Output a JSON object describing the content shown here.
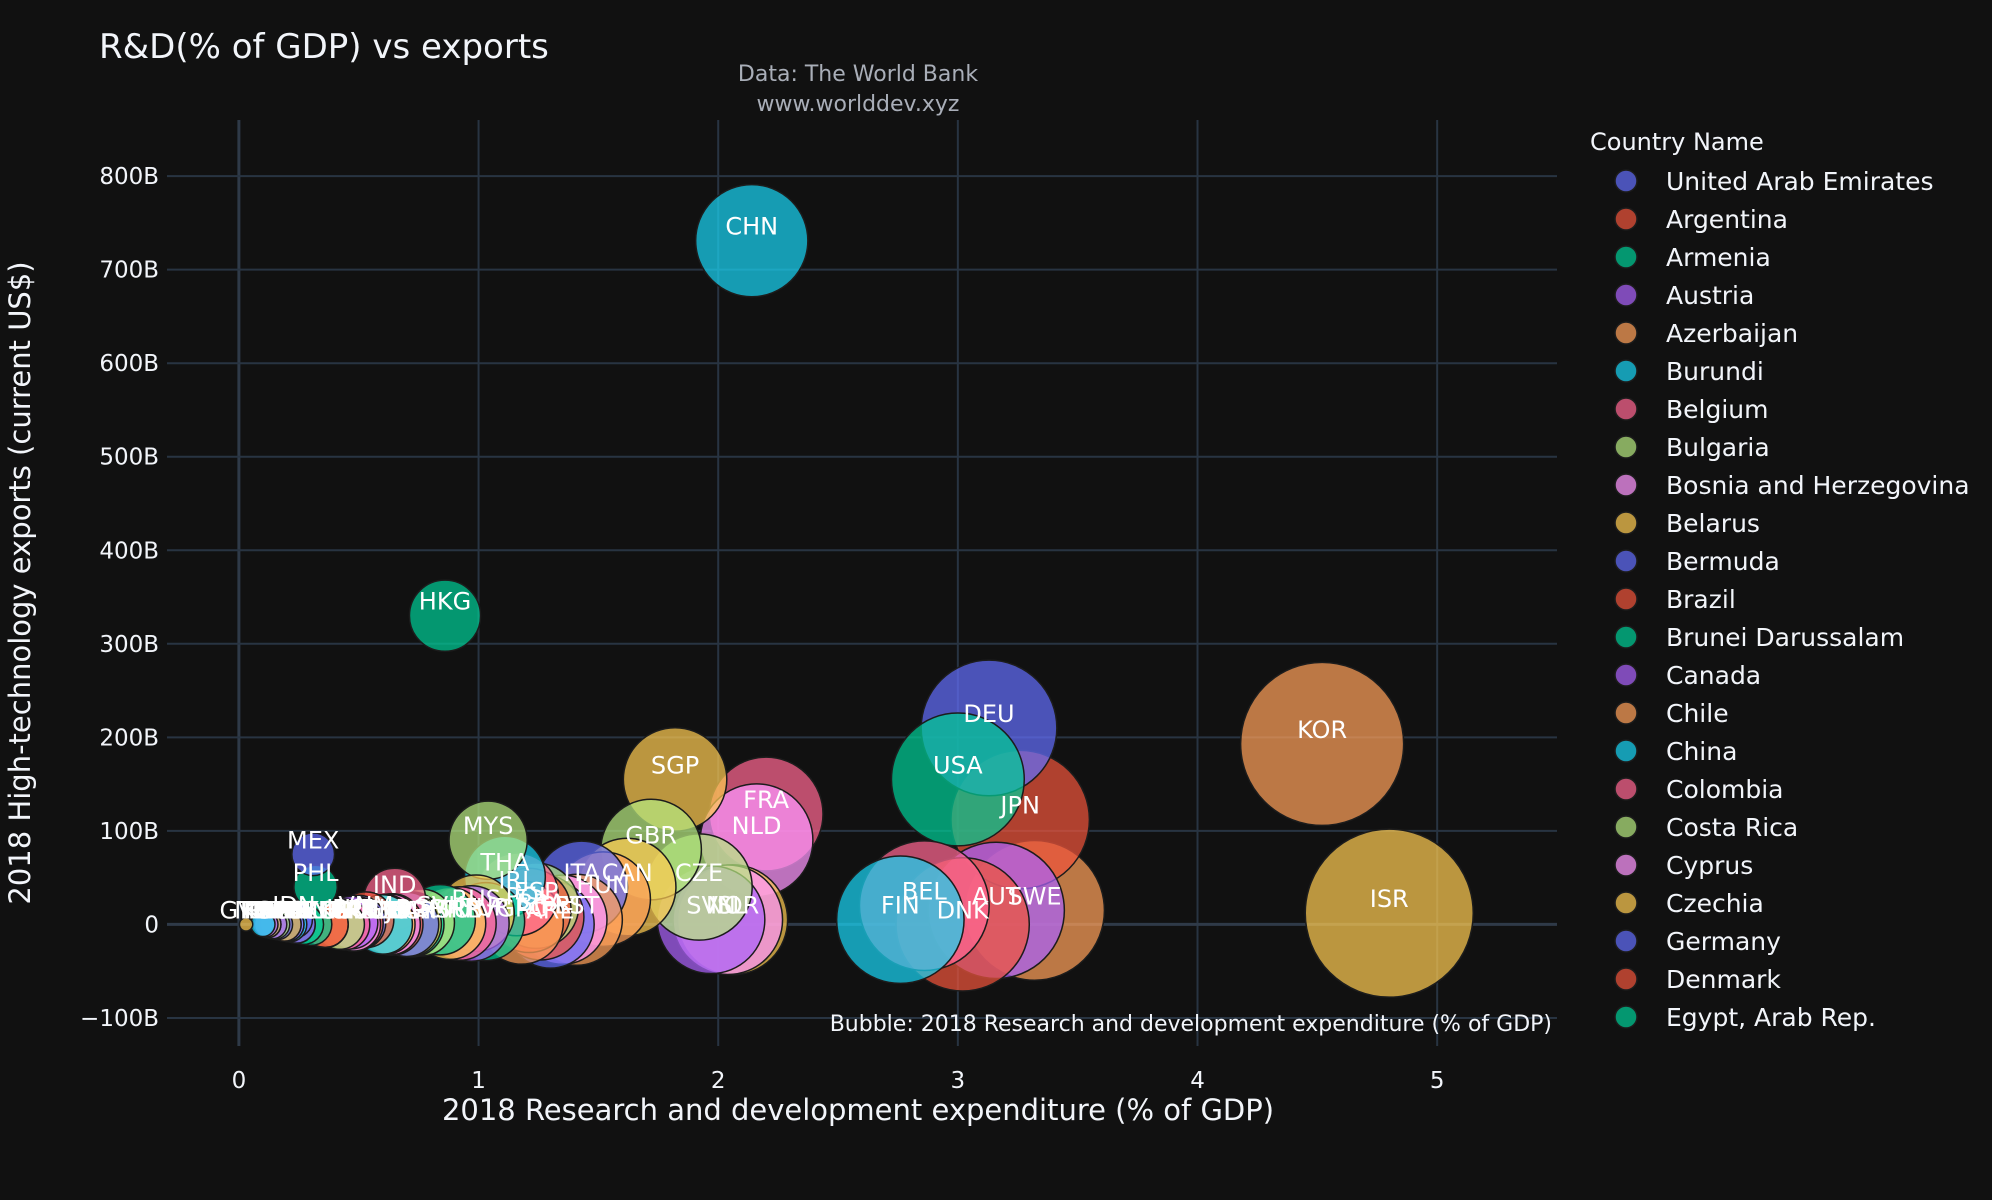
{
  "chart_data": {
    "type": "scatter",
    "title": "R&D(% of GDP) vs exports",
    "subtitle_lines": [
      "Data: The World Bank",
      "www.worlddev.xyz"
    ],
    "xlabel": "2018 Research and development expenditure (% of GDP)",
    "ylabel": "2018 High-technology exports (current US$)",
    "size_note": "Bubble: 2018 Research and development expenditure (% of GDP)",
    "xlim": [
      -0.3,
      5.5
    ],
    "ylim": [
      -130,
      860
    ],
    "x_ticks": [
      0,
      1,
      2,
      3,
      4,
      5
    ],
    "y_ticks": [
      -100,
      0,
      100,
      200,
      300,
      400,
      500,
      600,
      700,
      800
    ],
    "y_tick_labels": [
      "−100B",
      "0",
      "100B",
      "200B",
      "300B",
      "400B",
      "500B",
      "600B",
      "700B",
      "800B"
    ],
    "grid": true,
    "legend_title": "Country Name",
    "legend_position": "right",
    "legend": [
      {
        "name": "United Arab Emirates",
        "color": "#636efa"
      },
      {
        "name": "Argentina",
        "color": "#ef553b"
      },
      {
        "name": "Armenia",
        "color": "#00cc96"
      },
      {
        "name": "Austria",
        "color": "#ab63fa"
      },
      {
        "name": "Azerbaijan",
        "color": "#ffa15a"
      },
      {
        "name": "Burundi",
        "color": "#19d3f3"
      },
      {
        "name": "Belgium",
        "color": "#ff6692"
      },
      {
        "name": "Bulgaria",
        "color": "#b6e880"
      },
      {
        "name": "Bosnia and Herzegovina",
        "color": "#ff97ff"
      },
      {
        "name": "Belarus",
        "color": "#fecb52"
      },
      {
        "name": "Bermuda",
        "color": "#636efa"
      },
      {
        "name": "Brazil",
        "color": "#ef553b"
      },
      {
        "name": "Brunei Darussalam",
        "color": "#00cc96"
      },
      {
        "name": "Canada",
        "color": "#ab63fa"
      },
      {
        "name": "Chile",
        "color": "#ffa15a"
      },
      {
        "name": "China",
        "color": "#19d3f3"
      },
      {
        "name": "Colombia",
        "color": "#ff6692"
      },
      {
        "name": "Costa Rica",
        "color": "#b6e880"
      },
      {
        "name": "Cyprus",
        "color": "#ff97ff"
      },
      {
        "name": "Czechia",
        "color": "#fecb52"
      },
      {
        "name": "Germany",
        "color": "#636efa"
      },
      {
        "name": "Denmark",
        "color": "#ef553b"
      },
      {
        "name": "Egypt, Arab Rep.",
        "color": "#00cc96"
      }
    ],
    "points": [
      {
        "label": "CHN",
        "x": 2.14,
        "y": 731,
        "color": "#19d3f3"
      },
      {
        "label": "HKG",
        "x": 0.86,
        "y": 330,
        "color": "#00cc96"
      },
      {
        "label": "KOR",
        "x": 4.52,
        "y": 193,
        "color": "#ffa15a"
      },
      {
        "label": "ISR",
        "x": 4.8,
        "y": 12,
        "color": "#fecb52"
      },
      {
        "label": "DEU",
        "x": 3.13,
        "y": 210,
        "color": "#636efa"
      },
      {
        "label": "USA",
        "x": 3.0,
        "y": 155,
        "color": "#00cc96"
      },
      {
        "label": "JPN",
        "x": 3.26,
        "y": 112,
        "color": "#ef553b"
      },
      {
        "label": "SWE",
        "x": 3.32,
        "y": 15,
        "color": "#ffa15a"
      },
      {
        "label": "AUT",
        "x": 3.16,
        "y": 15,
        "color": "#ab63fa"
      },
      {
        "label": "DNK",
        "x": 3.02,
        "y": 0,
        "color": "#ef553b"
      },
      {
        "label": "BEL",
        "x": 2.86,
        "y": 20,
        "color": "#ff6692"
      },
      {
        "label": "FIN",
        "x": 2.76,
        "y": 5,
        "color": "#19d3f3"
      },
      {
        "label": "SGP",
        "x": 1.82,
        "y": 155,
        "color": "#fecb52"
      },
      {
        "label": "FRA",
        "x": 2.2,
        "y": 118,
        "color": "#ff6692"
      },
      {
        "label": "NLD",
        "x": 2.16,
        "y": 90,
        "color": "#ff97ff"
      },
      {
        "label": "GBR",
        "x": 1.72,
        "y": 80,
        "color": "#b6e880"
      },
      {
        "label": "CZE",
        "x": 1.92,
        "y": 40,
        "color": "#b6e880"
      },
      {
        "label": "NOR",
        "x": 2.06,
        "y": 5,
        "color": "#fecb52"
      },
      {
        "label": "SVN",
        "x": 1.97,
        "y": 5,
        "color": "#ab63fa"
      },
      {
        "label": "ISL",
        "x": 2.04,
        "y": 5,
        "color": "#ff97ff"
      },
      {
        "label": "CAN",
        "x": 1.62,
        "y": 40,
        "color": "#fecb52"
      },
      {
        "label": "HUN",
        "x": 1.52,
        "y": 27,
        "color": "#ffa15a"
      },
      {
        "label": "ITA",
        "x": 1.43,
        "y": 40,
        "color": "#636efa"
      },
      {
        "label": "EST",
        "x": 1.41,
        "y": 5,
        "color": "#ffa15a"
      },
      {
        "label": "MYS",
        "x": 1.04,
        "y": 90,
        "color": "#b6e880"
      },
      {
        "label": "THA",
        "x": 1.11,
        "y": 51,
        "color": "#19d3f3"
      },
      {
        "label": "IRL",
        "x": 1.16,
        "y": 32,
        "color": "#ff6692"
      },
      {
        "label": "ESP",
        "x": 1.24,
        "y": 20,
        "color": "#b6e880"
      },
      {
        "label": "RUS",
        "x": 0.99,
        "y": 12,
        "color": "#fecb52"
      },
      {
        "label": "MEX",
        "x": 0.31,
        "y": 75,
        "color": "#636efa"
      },
      {
        "label": "PHL",
        "x": 0.32,
        "y": 40,
        "color": "#00cc96"
      },
      {
        "label": "IND",
        "x": 0.65,
        "y": 27,
        "color": "#ff6692"
      },
      {
        "label": "IDN",
        "x": 0.23,
        "y": 5,
        "color": "#636efa"
      },
      {
        "label": "SVK",
        "x": 0.84,
        "y": 5,
        "color": "#00cc96"
      },
      {
        "label": "VNM",
        "x": 0.53,
        "y": 5,
        "color": "#ef553b"
      },
      {
        "label": "POL",
        "x": 1.21,
        "y": 15,
        "color": "#ef553b"
      },
      {
        "label": "PRT",
        "x": 1.35,
        "y": 5,
        "color": "#ff97ff"
      },
      {
        "label": "UKR",
        "x": 0.47,
        "y": 2,
        "color": "#ab63fa"
      },
      {
        "label": "ROU",
        "x": 0.5,
        "y": 2,
        "color": "#636efa"
      },
      {
        "label": "TUR",
        "x": 1.03,
        "y": 3,
        "color": "#00cc96"
      },
      {
        "label": "BRA",
        "x": 1.26,
        "y": 8,
        "color": "#ef553b"
      },
      {
        "label": "GRC",
        "x": 1.18,
        "y": 2,
        "color": "#ffa15a"
      },
      {
        "label": "BGR",
        "x": 0.76,
        "y": 2,
        "color": "#b6e880"
      },
      {
        "label": "LTU",
        "x": 0.88,
        "y": 1,
        "color": "#fecb52"
      },
      {
        "label": "HRV",
        "x": 0.97,
        "y": 1,
        "color": "#ab63fa"
      },
      {
        "label": "SRB",
        "x": 0.92,
        "y": 1,
        "color": "#ff6692"
      },
      {
        "label": "ARG",
        "x": 0.49,
        "y": 1,
        "color": "#ef553b"
      },
      {
        "label": "CHL",
        "x": 0.36,
        "y": 0,
        "color": "#ffa15a"
      },
      {
        "label": "COL",
        "x": 0.24,
        "y": 0,
        "color": "#ff6692"
      },
      {
        "label": "KAZ",
        "x": 0.12,
        "y": 0,
        "color": "#19d3f3"
      },
      {
        "label": "PAK",
        "x": 0.24,
        "y": 0,
        "color": "#636efa"
      },
      {
        "label": "EGY",
        "x": 0.72,
        "y": 0,
        "color": "#00cc96"
      },
      {
        "label": "CRI",
        "x": 0.42,
        "y": 0,
        "color": "#b6e880"
      },
      {
        "label": "URY",
        "x": 0.48,
        "y": 0,
        "color": "#ff97ff"
      },
      {
        "label": "TUN",
        "x": 0.6,
        "y": 0,
        "color": "#19d3f3"
      },
      {
        "label": "MAR",
        "x": 0.71,
        "y": 0,
        "color": "#fecb52"
      },
      {
        "label": "ARE",
        "x": 1.3,
        "y": 0,
        "color": "#636efa"
      },
      {
        "label": "LVA",
        "x": 0.64,
        "y": 0,
        "color": "#ef553b"
      },
      {
        "label": "CYP",
        "x": 0.63,
        "y": 0,
        "color": "#ff97ff"
      },
      {
        "label": "BLR",
        "x": 0.61,
        "y": 0,
        "color": "#fecb52"
      },
      {
        "label": "GEO",
        "x": 0.3,
        "y": 0,
        "color": "#00cc96"
      },
      {
        "label": "ARM",
        "x": 0.19,
        "y": 0,
        "color": "#00cc96"
      },
      {
        "label": "AZE",
        "x": 0.19,
        "y": 0,
        "color": "#ffa15a"
      },
      {
        "label": "KGZ",
        "x": 0.11,
        "y": 0,
        "color": "#ab63fa"
      },
      {
        "label": "MNG",
        "x": 0.1,
        "y": 0,
        "color": "#19d3f3"
      },
      {
        "label": "SLV",
        "x": 0.16,
        "y": 0,
        "color": "#636efa"
      },
      {
        "label": "BIH",
        "x": 0.2,
        "y": 0,
        "color": "#ff97ff"
      },
      {
        "label": "MKD",
        "x": 0.36,
        "y": 0,
        "color": "#ef553b"
      },
      {
        "label": "BMU",
        "x": 0.2,
        "y": 0,
        "color": "#636efa"
      },
      {
        "label": "BDI",
        "x": 0.21,
        "y": 0,
        "color": "#19d3f3"
      },
      {
        "label": "BRN",
        "x": 0.27,
        "y": 0,
        "color": "#00cc96"
      },
      {
        "label": "ECU",
        "x": 0.44,
        "y": 0,
        "color": "#ff6692"
      },
      {
        "label": "PRY",
        "x": 0.15,
        "y": 0,
        "color": "#b6e880"
      },
      {
        "label": "PER",
        "x": 0.12,
        "y": 0,
        "color": "#ffa15a"
      },
      {
        "label": "GTM",
        "x": 0.03,
        "y": 0,
        "color": "#fecb52"
      },
      {
        "label": "PAN",
        "x": 0.14,
        "y": 0,
        "color": "#ab63fa"
      },
      {
        "label": "JOR",
        "x": 0.7,
        "y": 0,
        "color": "#636efa"
      }
    ]
  }
}
